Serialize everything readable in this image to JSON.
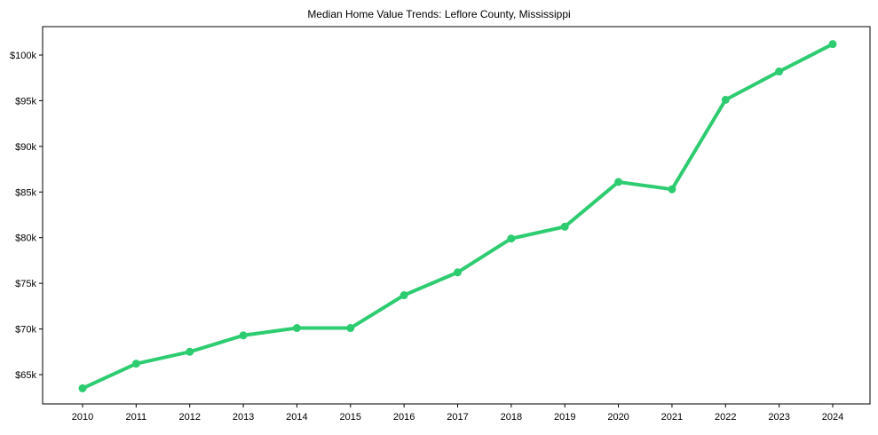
{
  "chart_data": {
    "type": "line",
    "title": "Median Home Value Trends: Leflore County, Mississippi",
    "xlabel": "",
    "ylabel": "",
    "categories": [
      "2010",
      "2011",
      "2012",
      "2013",
      "2014",
      "2015",
      "2016",
      "2017",
      "2018",
      "2019",
      "2020",
      "2021",
      "2022",
      "2023",
      "2024"
    ],
    "series": [
      {
        "name": "Median Home Value",
        "color": "#2ecc71",
        "values": [
          63500,
          66200,
          67500,
          69300,
          70100,
          70100,
          73700,
          76200,
          79900,
          81200,
          86100,
          85300,
          95100,
          98200,
          101200
        ]
      }
    ],
    "yticks": [
      65000,
      70000,
      75000,
      80000,
      85000,
      90000,
      95000,
      100000
    ],
    "ytick_labels": [
      "$65k",
      "$70k",
      "$75k",
      "$80k",
      "$85k",
      "$90k",
      "$95k",
      "$100k"
    ],
    "ylim": [
      61600,
      103100
    ],
    "grid": false,
    "legend": null
  }
}
